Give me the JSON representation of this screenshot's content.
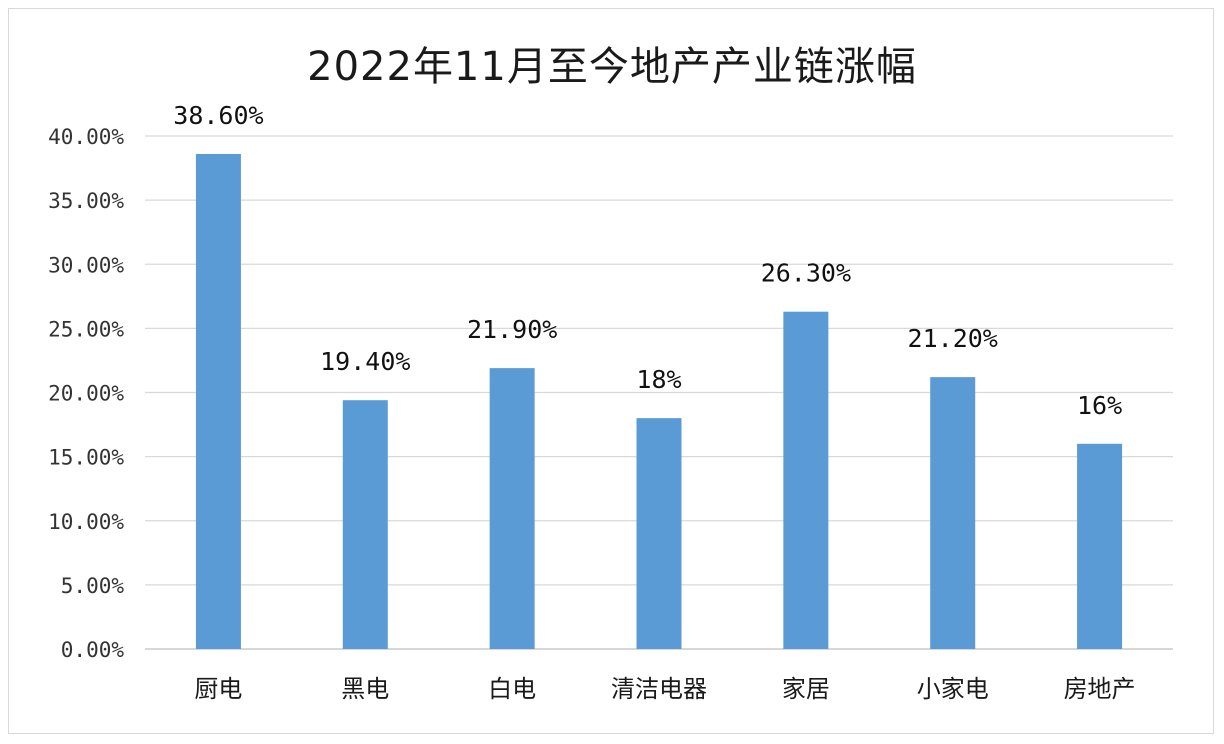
{
  "chart_data": {
    "type": "bar",
    "title": "2022年11月至今地产产业链涨幅",
    "xlabel": "",
    "ylabel": "",
    "categories": [
      "厨电",
      "黑电",
      "白电",
      "清洁电器",
      "家居",
      "小家电",
      "房地产"
    ],
    "values": [
      38.6,
      19.4,
      21.9,
      18,
      26.3,
      21.2,
      16
    ],
    "data_labels": [
      "38.60%",
      "19.40%",
      "21.90%",
      "18%",
      "26.30%",
      "21.20%",
      "16%"
    ],
    "ylim": [
      0,
      40
    ],
    "yticks": [
      0,
      5,
      10,
      15,
      20,
      25,
      30,
      35,
      40
    ],
    "ytick_labels": [
      "0.00%",
      "5.00%",
      "10.00%",
      "15.00%",
      "20.00%",
      "25.00%",
      "30.00%",
      "35.00%",
      "40.00%"
    ],
    "grid": true,
    "legend": "none",
    "colors": {
      "bar": "#5b9bd5",
      "grid": "#d9d9d9",
      "axis": "#bfbfbf"
    }
  }
}
